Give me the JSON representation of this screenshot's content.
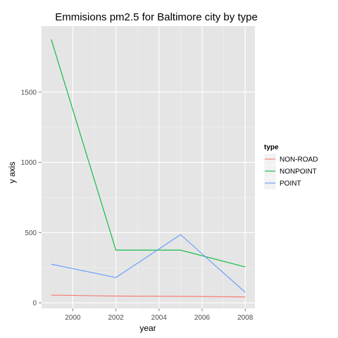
{
  "chart_data": {
    "type": "line",
    "title": "Emmisions pm2.5 for Baltimore city by type",
    "xlabel": "year",
    "ylabel": "y axis",
    "x": [
      1999,
      2002,
      2005,
      2008
    ],
    "xlim": [
      1998.55,
      2008.45
    ],
    "ylim": [
      -40,
      1970
    ],
    "xticks": [
      2000,
      2002,
      2004,
      2006,
      2008
    ],
    "yticks": [
      0,
      500,
      1000,
      1500
    ],
    "grid": true,
    "legend": {
      "title": "type",
      "position": "right"
    },
    "series": [
      {
        "name": "NON-ROAD",
        "color": "#f8766d",
        "values": [
          55,
          48,
          46,
          42
        ]
      },
      {
        "name": "NONPOINT",
        "color": "#00ba38",
        "values": [
          1875,
          375,
          375,
          255
        ]
      },
      {
        "name": "POINT",
        "color": "#619cff",
        "values": [
          275,
          180,
          485,
          75
        ]
      }
    ]
  }
}
